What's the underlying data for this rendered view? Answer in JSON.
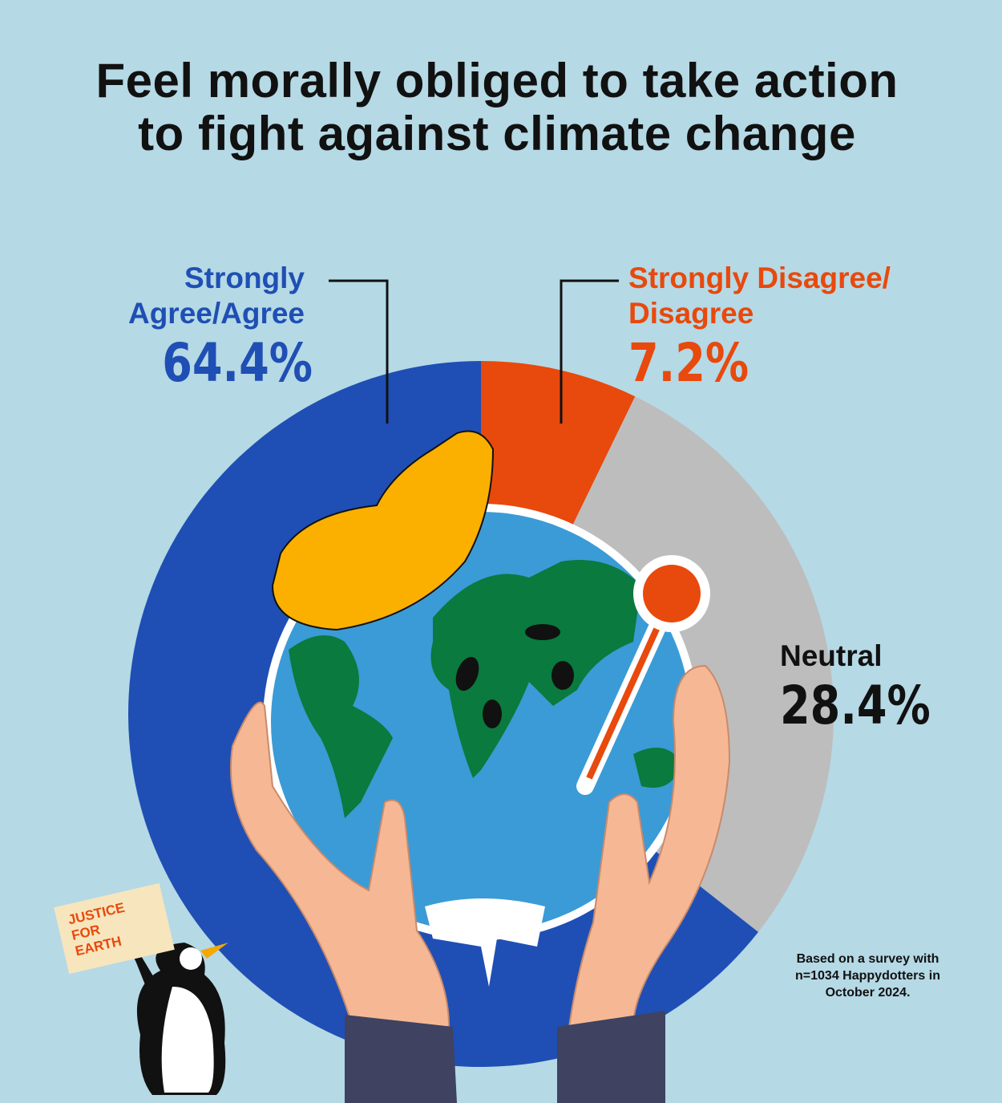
{
  "chart_data": {
    "type": "pie",
    "variant": "donut",
    "title": "Feel morally obliged to take action to fight against climate change",
    "start": "top",
    "direction": "clockwise",
    "slices": [
      {
        "label": "Strongly Disagree/ Disagree",
        "value": 7.2,
        "display": "7.2%",
        "color": "#e8490c"
      },
      {
        "label": "Neutral",
        "value": 28.4,
        "display": "28.4%",
        "color": "#bdbdbd"
      },
      {
        "label": "Strongly Agree/Agree",
        "value": 64.4,
        "display": "64.4%",
        "color": "#1f4fb4"
      }
    ]
  },
  "labels": {
    "agree_line1": "Strongly",
    "agree_line2": "Agree/Agree",
    "disagree_line1": "Strongly Disagree/",
    "disagree_line2": "Disagree",
    "neutral": "Neutral"
  },
  "note": "Based on a survey with n=1034 Happydotters in October 2024.",
  "sign": {
    "line1": "JUSTICE",
    "line2": "FOR",
    "line3": "EARTH"
  }
}
